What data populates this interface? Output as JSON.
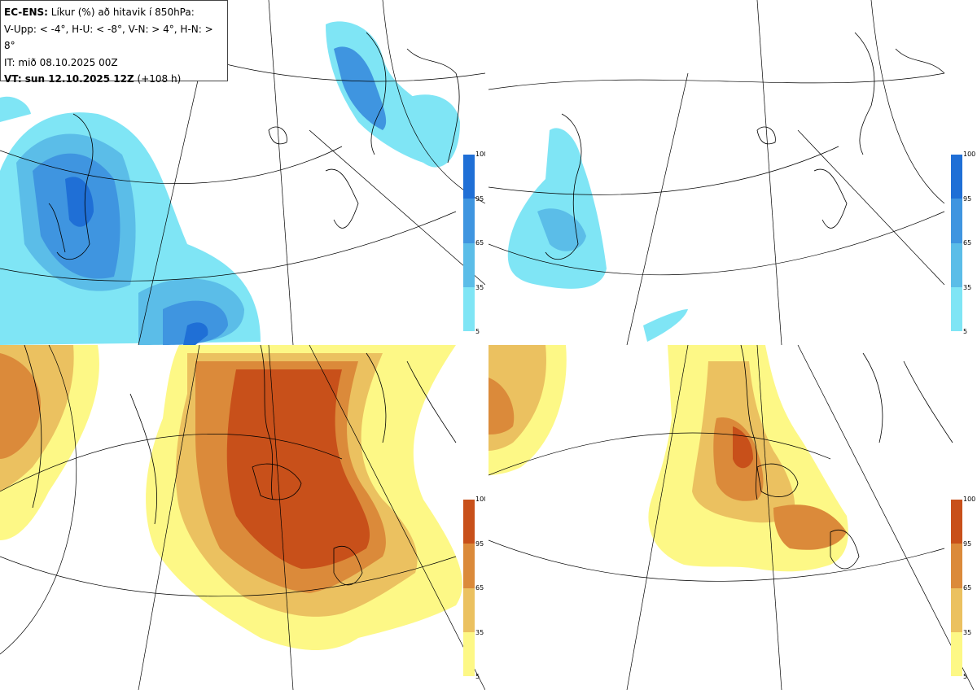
{
  "header": {
    "model": "EC-ENS:",
    "title_rest": "Líkur (%) að hitavik í 850hPa:",
    "legend_line": "V-Upp: < -4°, H-U: < -8°, V-N: > 4°, H-N: > 8°",
    "it_line": "IT: mið 08.10.2025 00Z",
    "vt_bold": "VT: sun 12.10.2025 12Z",
    "vt_rest": "(+108 h)"
  },
  "colorbar": {
    "ticks": [
      "100",
      "95",
      "65",
      "35",
      "5"
    ],
    "cold_colors": [
      "#1f6fd6",
      "#3f95e0",
      "#5bbde8",
      "#7fe5f5"
    ],
    "warm_colors": [
      "#c8501a",
      "#db8a3a",
      "#ebc160",
      "#fdf886"
    ]
  },
  "panels": [
    {
      "id": "upper-left",
      "label": "V-Upp",
      "scheme": "cold"
    },
    {
      "id": "upper-right",
      "label": "H-U",
      "scheme": "cold"
    },
    {
      "id": "lower-left",
      "label": "V-N",
      "scheme": "warm"
    },
    {
      "id": "lower-right",
      "label": "H-N",
      "scheme": "warm"
    }
  ]
}
